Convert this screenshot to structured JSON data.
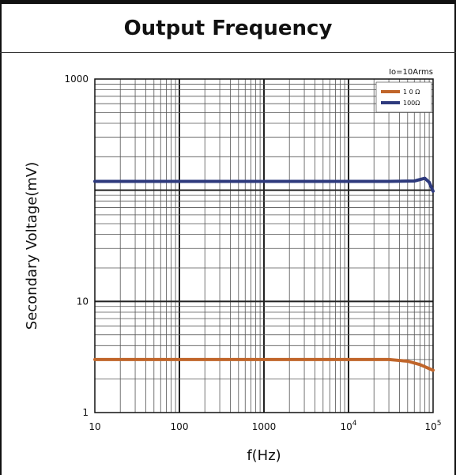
{
  "chart_data": {
    "type": "line",
    "title": "Output Frequency",
    "xlabel": "f(Hz)",
    "ylabel": "Secondary Voltage(mV)",
    "xscale": "log",
    "yscale": "log",
    "xlim": [
      10,
      100000
    ],
    "ylim": [
      1,
      1000
    ],
    "grid": true,
    "legend_position": "top-right",
    "annotation": "Io=10Arms",
    "x_ticks": [
      {
        "value": 10,
        "base": "10",
        "exp": ""
      },
      {
        "value": 100,
        "base": "100",
        "exp": ""
      },
      {
        "value": 1000,
        "base": "1000",
        "exp": ""
      },
      {
        "value": 10000,
        "base": "10",
        "exp": "4"
      },
      {
        "value": 100000,
        "base": "10",
        "exp": "5"
      }
    ],
    "y_ticks": [
      {
        "value": 1,
        "label": "1"
      },
      {
        "value": 10,
        "label": "10"
      },
      {
        "value": 1000,
        "label": "1000"
      }
    ],
    "series": [
      {
        "name": "1 0 Ω",
        "color": "#c0652a",
        "x": [
          10,
          100,
          1000,
          10000,
          30000,
          50000,
          70000,
          100000
        ],
        "y": [
          3.0,
          3.0,
          3.0,
          3.0,
          3.0,
          2.9,
          2.7,
          2.4
        ]
      },
      {
        "name": "100Ω",
        "color": "#2e3a7d",
        "x": [
          10,
          100,
          1000,
          10000,
          30000,
          60000,
          80000,
          90000,
          100000
        ],
        "y": [
          120,
          120,
          120,
          120,
          120,
          121,
          128,
          118,
          98
        ]
      }
    ]
  }
}
